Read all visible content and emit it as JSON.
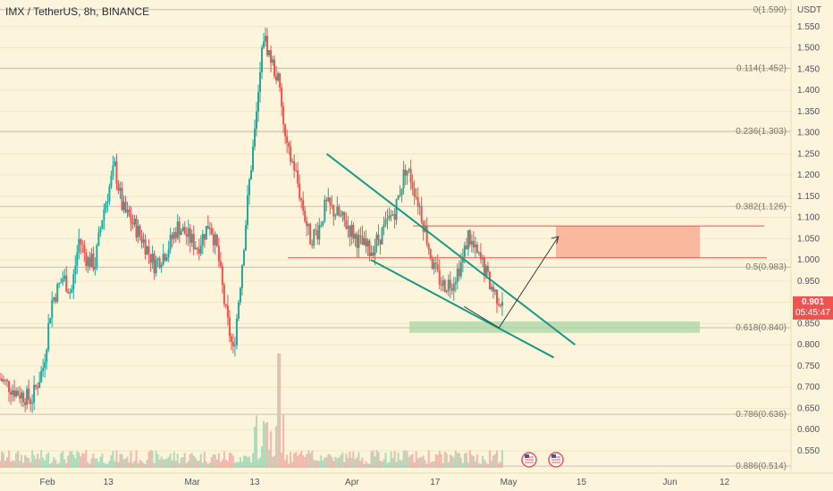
{
  "header": {
    "symbol": "IMX / TetherUS, 8h, BINANCE",
    "unit": "USDT"
  },
  "last_price": {
    "price": "0.901",
    "countdown": "05:45:47"
  },
  "colors": {
    "background": "#fdf4dc",
    "up": "#26a69a",
    "down": "#ef5350",
    "wedge": "#159a85",
    "zone_red": "#f6a58a",
    "zone_green": "#a8d6a4",
    "fib_line": "#b8b3a6",
    "axis_text": "#50535e"
  },
  "chart_data": {
    "type": "candlestick",
    "pair": "IMX / TetherUS",
    "timeframe": "8h",
    "exchange": "BINANCE",
    "y_axis": {
      "unit": "USDT",
      "range": [
        0.51,
        1.6
      ],
      "ticks": [
        "0.550",
        "0.600",
        "0.650",
        "0.700",
        "0.750",
        "0.800",
        "0.850",
        "0.900",
        "0.950",
        "1.000",
        "1.050",
        "1.100",
        "1.150",
        "1.200",
        "1.250",
        "1.300",
        "1.350",
        "1.400",
        "1.450",
        "1.500",
        "1.550"
      ]
    },
    "x_axis": {
      "ticks": [
        "Feb",
        "13",
        "Mar",
        "13",
        "Apr",
        "17",
        "May",
        "15",
        "Jun",
        "12"
      ]
    },
    "fib_levels": [
      {
        "ratio": "0",
        "price": 1.59,
        "label": "0(1.590)"
      },
      {
        "ratio": "0.114",
        "price": 1.452,
        "label": "0.114(1.452)"
      },
      {
        "ratio": "0.236",
        "price": 1.303,
        "label": "0.236(1.303)"
      },
      {
        "ratio": "0.382",
        "price": 1.126,
        "label": "0.382(1.126)"
      },
      {
        "ratio": "0.5",
        "price": 0.983,
        "label": "0.5(0.983)"
      },
      {
        "ratio": "0.618",
        "price": 0.84,
        "label": "0.618(0.840)"
      },
      {
        "ratio": "0.786",
        "price": 0.636,
        "label": "0.786(0.636)"
      },
      {
        "ratio": "0.886",
        "price": 0.514,
        "label": "0.886(0.514)"
      }
    ],
    "horizontal_lines": [
      1.08,
      1.005
    ],
    "zones": [
      {
        "name": "target zone",
        "color": "red",
        "price_top": 1.08,
        "price_bottom": 1.005
      },
      {
        "name": "support zone",
        "color": "green",
        "price_top": 0.855,
        "price_bottom": 0.828
      }
    ],
    "wedge": {
      "upper": {
        "start": [
          0.413,
          1.25
        ],
        "end": [
          0.727,
          0.8
        ]
      },
      "lower": {
        "start": [
          0.469,
          1.0
        ],
        "end": [
          0.7,
          0.77
        ]
      }
    },
    "projection_path": [
      [
        0.632,
        0.85
      ],
      [
        0.65,
        0.84
      ],
      [
        0.706,
        1.055
      ]
    ],
    "price_path": [
      [
        0.0,
        0.72
      ],
      [
        0.02,
        0.69
      ],
      [
        0.04,
        0.67
      ],
      [
        0.055,
        0.75
      ],
      [
        0.065,
        0.9
      ],
      [
        0.08,
        0.96
      ],
      [
        0.09,
        0.92
      ],
      [
        0.1,
        1.05
      ],
      [
        0.11,
        1.0
      ],
      [
        0.12,
        0.99
      ],
      [
        0.13,
        1.11
      ],
      [
        0.145,
        1.22
      ],
      [
        0.155,
        1.12
      ],
      [
        0.17,
        1.08
      ],
      [
        0.18,
        1.05
      ],
      [
        0.195,
        0.99
      ],
      [
        0.21,
        1.02
      ],
      [
        0.225,
        1.08
      ],
      [
        0.24,
        1.05
      ],
      [
        0.25,
        1.03
      ],
      [
        0.265,
        1.09
      ],
      [
        0.275,
        1.02
      ],
      [
        0.285,
        0.88
      ],
      [
        0.295,
        0.78
      ],
      [
        0.305,
        0.97
      ],
      [
        0.315,
        1.18
      ],
      [
        0.325,
        1.35
      ],
      [
        0.333,
        1.53
      ],
      [
        0.343,
        1.47
      ],
      [
        0.352,
        1.42
      ],
      [
        0.362,
        1.26
      ],
      [
        0.372,
        1.22
      ],
      [
        0.382,
        1.13
      ],
      [
        0.392,
        1.05
      ],
      [
        0.402,
        1.07
      ],
      [
        0.412,
        1.13
      ],
      [
        0.425,
        1.11
      ],
      [
        0.44,
        1.08
      ],
      [
        0.455,
        1.04
      ],
      [
        0.468,
        1.02
      ],
      [
        0.485,
        1.07
      ],
      [
        0.5,
        1.12
      ],
      [
        0.513,
        1.22
      ],
      [
        0.52,
        1.19
      ],
      [
        0.53,
        1.13
      ],
      [
        0.54,
        1.05
      ],
      [
        0.548,
        0.98
      ],
      [
        0.56,
        0.94
      ],
      [
        0.572,
        0.95
      ],
      [
        0.585,
        1.0
      ],
      [
        0.592,
        1.06
      ],
      [
        0.6,
        1.02
      ],
      [
        0.61,
        0.99
      ],
      [
        0.62,
        0.94
      ],
      [
        0.63,
        0.91
      ],
      [
        0.635,
        0.901
      ]
    ]
  }
}
